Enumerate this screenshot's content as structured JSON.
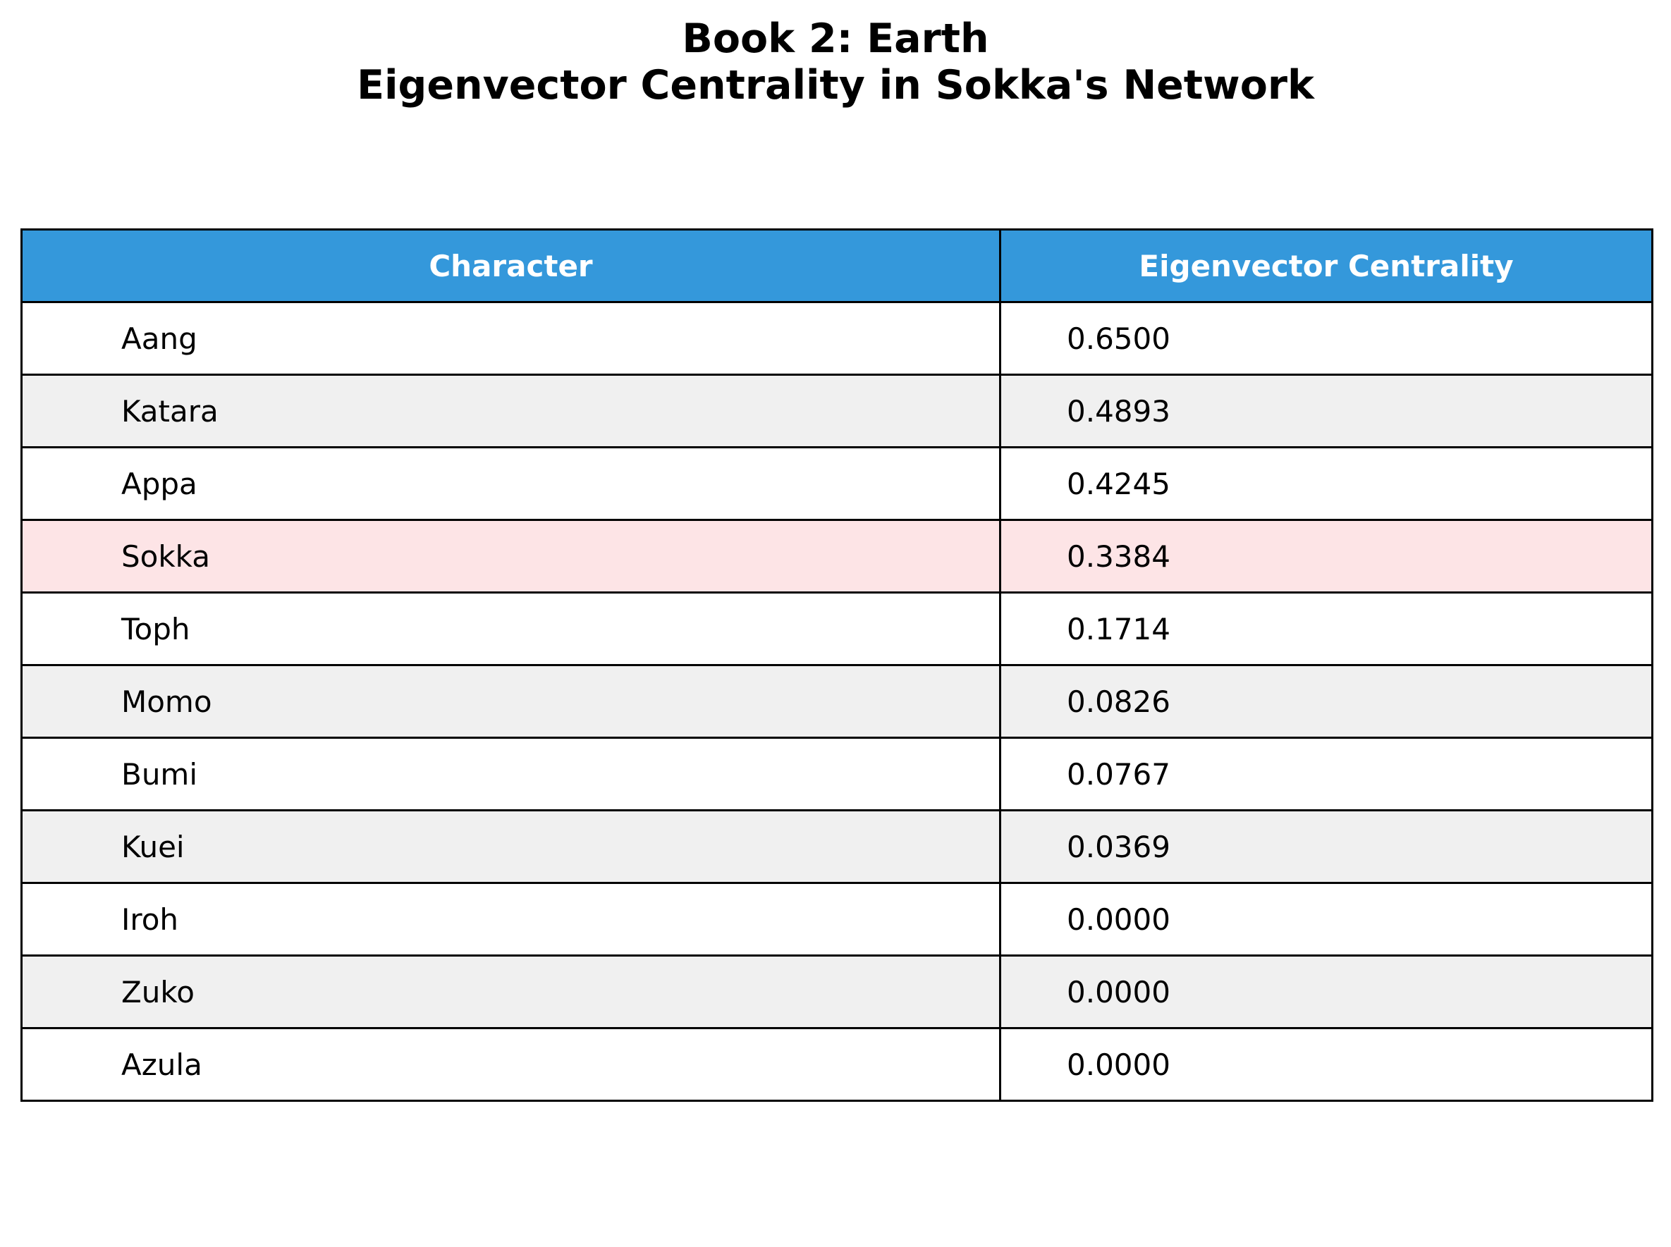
{
  "chart_data": {
    "type": "table",
    "title_line1": "Book 2: Earth",
    "title_line2": "Eigenvector Centrality in Sokka's Network",
    "columns": [
      "Character",
      "Eigenvector Centrality"
    ],
    "rows": [
      {
        "character": "Aang",
        "centrality": "0.6500"
      },
      {
        "character": "Katara",
        "centrality": "0.4893"
      },
      {
        "character": "Appa",
        "centrality": "0.4245"
      },
      {
        "character": "Sokka",
        "centrality": "0.3384",
        "highlight": true
      },
      {
        "character": "Toph",
        "centrality": "0.1714"
      },
      {
        "character": "Momo",
        "centrality": "0.0826"
      },
      {
        "character": "Bumi",
        "centrality": "0.0767"
      },
      {
        "character": "Kuei",
        "centrality": "0.0369"
      },
      {
        "character": "Iroh",
        "centrality": "0.0000"
      },
      {
        "character": "Zuko",
        "centrality": "0.0000"
      },
      {
        "character": "Azula",
        "centrality": "0.0000"
      }
    ]
  },
  "colors": {
    "header_bg": "#3498db",
    "header_text": "#ffffff",
    "row_even": "#ffffff",
    "row_odd": "#f0f0f0",
    "highlight": "#fde4e6"
  }
}
